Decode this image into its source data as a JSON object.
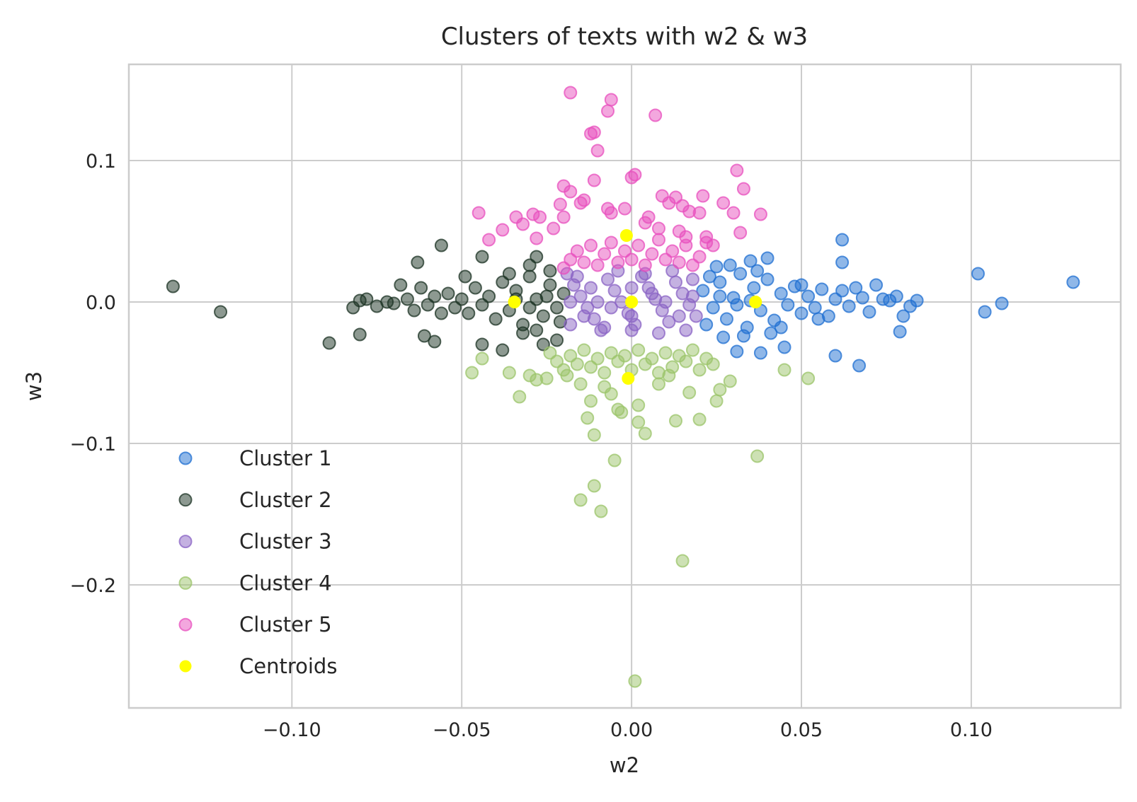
{
  "colors": {
    "cluster1": "#1f6fd1",
    "cluster2": "#1c3324",
    "cluster3": "#8a63c4",
    "cluster4": "#9bc46a",
    "cluster5": "#e84fbd",
    "centroids": "#ffff00",
    "grid": "#cccccc"
  },
  "chart_data": {
    "type": "scatter",
    "title": "Clusters of texts with w2 & w3",
    "xlabel": "w2",
    "ylabel": "w3",
    "xlim": [
      -0.148,
      0.144
    ],
    "ylim": [
      -0.287,
      0.168
    ],
    "xticks": [
      -0.1,
      -0.05,
      0.0,
      0.05,
      0.1
    ],
    "xtick_labels": [
      "−0.10",
      "−0.05",
      "0.00",
      "0.05",
      "0.10"
    ],
    "yticks": [
      0.1,
      0.0,
      -0.1,
      -0.2
    ],
    "ytick_labels": [
      "0.1",
      "0.0",
      "−0.1",
      "−0.2"
    ],
    "grid": true,
    "legend_position": "lower-left",
    "series": [
      {
        "name": "Cluster 1",
        "color_key": "cluster1",
        "points": [
          [
            0.021,
            0.008
          ],
          [
            0.024,
            -0.004
          ],
          [
            0.026,
            0.014
          ],
          [
            0.028,
            -0.012
          ],
          [
            0.03,
            0.003
          ],
          [
            0.032,
            0.02
          ],
          [
            0.034,
            -0.018
          ],
          [
            0.036,
            0.01
          ],
          [
            0.038,
            -0.006
          ],
          [
            0.04,
            0.016
          ],
          [
            0.042,
            -0.013
          ],
          [
            0.044,
            0.006
          ],
          [
            0.046,
            -0.002
          ],
          [
            0.048,
            0.011
          ],
          [
            0.05,
            -0.008
          ],
          [
            0.052,
            0.004
          ],
          [
            0.054,
            -0.004
          ],
          [
            0.056,
            0.009
          ],
          [
            0.058,
            -0.01
          ],
          [
            0.06,
            0.002
          ],
          [
            0.062,
            0.008
          ],
          [
            0.064,
            -0.003
          ],
          [
            0.066,
            0.01
          ],
          [
            0.068,
            0.003
          ],
          [
            0.07,
            -0.007
          ],
          [
            0.072,
            0.012
          ],
          [
            0.074,
            0.002
          ],
          [
            0.076,
            0.001
          ],
          [
            0.078,
            0.004
          ],
          [
            0.08,
            -0.01
          ],
          [
            0.082,
            -0.003
          ],
          [
            0.084,
            0.001
          ],
          [
            0.062,
            0.044
          ],
          [
            0.062,
            0.028
          ],
          [
            0.06,
            -0.038
          ],
          [
            0.067,
            -0.045
          ],
          [
            0.079,
            -0.021
          ],
          [
            0.045,
            -0.032
          ],
          [
            0.038,
            -0.036
          ],
          [
            0.031,
            -0.035
          ],
          [
            0.04,
            0.031
          ],
          [
            0.035,
            0.029
          ],
          [
            0.102,
            0.02
          ],
          [
            0.104,
            -0.007
          ],
          [
            0.109,
            -0.001
          ],
          [
            0.13,
            0.014
          ],
          [
            0.025,
            0.025
          ],
          [
            0.027,
            -0.025
          ],
          [
            0.033,
            -0.024
          ],
          [
            0.029,
            0.026
          ],
          [
            0.05,
            0.012
          ],
          [
            0.055,
            -0.012
          ],
          [
            0.044,
            -0.018
          ],
          [
            0.037,
            0.022
          ],
          [
            0.041,
            -0.022
          ],
          [
            0.023,
            0.018
          ],
          [
            0.022,
            -0.016
          ],
          [
            0.026,
            0.004
          ],
          [
            0.031,
            -0.002
          ],
          [
            0.035,
            0.001
          ]
        ]
      },
      {
        "name": "Cluster 2",
        "color_key": "cluster2",
        "points": [
          [
            -0.02,
            0.006
          ],
          [
            -0.022,
            -0.004
          ],
          [
            -0.024,
            0.012
          ],
          [
            -0.026,
            -0.01
          ],
          [
            -0.028,
            0.002
          ],
          [
            -0.03,
            0.018
          ],
          [
            -0.032,
            -0.016
          ],
          [
            -0.034,
            0.008
          ],
          [
            -0.036,
            -0.006
          ],
          [
            -0.038,
            0.014
          ],
          [
            -0.04,
            -0.012
          ],
          [
            -0.042,
            0.004
          ],
          [
            -0.044,
            -0.002
          ],
          [
            -0.046,
            0.01
          ],
          [
            -0.048,
            -0.008
          ],
          [
            -0.05,
            0.002
          ],
          [
            -0.052,
            -0.004
          ],
          [
            -0.054,
            0.006
          ],
          [
            -0.056,
            -0.008
          ],
          [
            -0.058,
            0.004
          ],
          [
            -0.06,
            -0.002
          ],
          [
            -0.062,
            0.01
          ],
          [
            -0.064,
            -0.006
          ],
          [
            -0.066,
            0.002
          ],
          [
            -0.068,
            0.012
          ],
          [
            -0.07,
            -0.001
          ],
          [
            -0.072,
            0.0
          ],
          [
            -0.075,
            -0.003
          ],
          [
            -0.078,
            0.002
          ],
          [
            -0.08,
            0.001
          ],
          [
            -0.082,
            -0.004
          ],
          [
            -0.056,
            0.04
          ],
          [
            -0.063,
            0.028
          ],
          [
            -0.044,
            0.032
          ],
          [
            -0.049,
            0.018
          ],
          [
            -0.028,
            0.032
          ],
          [
            -0.03,
            0.026
          ],
          [
            -0.022,
            -0.027
          ],
          [
            -0.026,
            -0.03
          ],
          [
            -0.038,
            -0.034
          ],
          [
            -0.044,
            -0.03
          ],
          [
            -0.058,
            -0.028
          ],
          [
            -0.061,
            -0.024
          ],
          [
            -0.08,
            -0.023
          ],
          [
            -0.089,
            -0.029
          ],
          [
            -0.121,
            -0.007
          ],
          [
            -0.135,
            0.011
          ],
          [
            -0.032,
            -0.022
          ],
          [
            -0.036,
            0.02
          ],
          [
            -0.028,
            -0.02
          ],
          [
            -0.024,
            0.022
          ],
          [
            -0.021,
            -0.014
          ],
          [
            -0.025,
            0.004
          ],
          [
            -0.03,
            -0.004
          ],
          [
            -0.034,
            0.002
          ]
        ]
      },
      {
        "name": "Cluster 3",
        "color_key": "cluster3",
        "points": [
          [
            -0.019,
            0.02
          ],
          [
            -0.017,
            0.012
          ],
          [
            -0.015,
            0.004
          ],
          [
            -0.013,
            -0.004
          ],
          [
            -0.011,
            -0.012
          ],
          [
            -0.009,
            -0.02
          ],
          [
            -0.007,
            0.016
          ],
          [
            -0.005,
            0.008
          ],
          [
            -0.003,
            0.0
          ],
          [
            -0.001,
            -0.008
          ],
          [
            0.001,
            -0.016
          ],
          [
            0.003,
            0.018
          ],
          [
            0.005,
            0.01
          ],
          [
            0.007,
            0.002
          ],
          [
            0.009,
            -0.006
          ],
          [
            0.011,
            -0.014
          ],
          [
            0.013,
            0.014
          ],
          [
            0.015,
            0.006
          ],
          [
            0.017,
            -0.002
          ],
          [
            0.019,
            -0.01
          ],
          [
            -0.018,
            -0.016
          ],
          [
            -0.016,
            0.018
          ],
          [
            -0.012,
            0.01
          ],
          [
            -0.008,
            -0.018
          ],
          [
            -0.004,
            0.022
          ],
          [
            0.0,
            -0.02
          ],
          [
            0.004,
            0.02
          ],
          [
            0.008,
            -0.022
          ],
          [
            0.012,
            0.022
          ],
          [
            0.016,
            -0.02
          ],
          [
            0.018,
            0.016
          ],
          [
            -0.018,
            0.0
          ],
          [
            0.018,
            0.004
          ],
          [
            0.0,
            0.01
          ],
          [
            0.0,
            -0.01
          ],
          [
            -0.01,
            0.0
          ],
          [
            0.01,
            0.0
          ],
          [
            -0.014,
            -0.01
          ],
          [
            0.014,
            -0.01
          ],
          [
            -0.006,
            -0.004
          ],
          [
            0.006,
            0.006
          ]
        ]
      },
      {
        "name": "Cluster 4",
        "color_key": "cluster4",
        "points": [
          [
            -0.024,
            -0.036
          ],
          [
            -0.022,
            -0.042
          ],
          [
            -0.02,
            -0.048
          ],
          [
            -0.018,
            -0.038
          ],
          [
            -0.016,
            -0.044
          ],
          [
            -0.014,
            -0.034
          ],
          [
            -0.012,
            -0.046
          ],
          [
            -0.01,
            -0.04
          ],
          [
            -0.008,
            -0.05
          ],
          [
            -0.006,
            -0.036
          ],
          [
            -0.004,
            -0.042
          ],
          [
            -0.002,
            -0.038
          ],
          [
            0.0,
            -0.048
          ],
          [
            0.002,
            -0.034
          ],
          [
            0.004,
            -0.044
          ],
          [
            0.006,
            -0.04
          ],
          [
            0.008,
            -0.05
          ],
          [
            0.01,
            -0.036
          ],
          [
            0.012,
            -0.046
          ],
          [
            0.014,
            -0.038
          ],
          [
            0.016,
            -0.042
          ],
          [
            0.018,
            -0.034
          ],
          [
            0.02,
            -0.048
          ],
          [
            0.022,
            -0.04
          ],
          [
            0.024,
            -0.044
          ],
          [
            -0.03,
            -0.052
          ],
          [
            -0.028,
            -0.055
          ],
          [
            -0.033,
            -0.067
          ],
          [
            -0.025,
            -0.054
          ],
          [
            -0.036,
            -0.05
          ],
          [
            -0.047,
            -0.05
          ],
          [
            -0.044,
            -0.04
          ],
          [
            -0.015,
            -0.058
          ],
          [
            -0.012,
            -0.07
          ],
          [
            -0.013,
            -0.082
          ],
          [
            -0.011,
            -0.094
          ],
          [
            -0.006,
            -0.065
          ],
          [
            -0.004,
            -0.076
          ],
          [
            -0.003,
            -0.078
          ],
          [
            0.002,
            -0.073
          ],
          [
            0.002,
            -0.085
          ],
          [
            0.004,
            -0.093
          ],
          [
            0.013,
            -0.084
          ],
          [
            0.017,
            -0.064
          ],
          [
            0.02,
            -0.083
          ],
          [
            0.025,
            -0.07
          ],
          [
            0.026,
            -0.062
          ],
          [
            0.029,
            -0.056
          ],
          [
            0.045,
            -0.048
          ],
          [
            0.052,
            -0.054
          ],
          [
            -0.005,
            -0.112
          ],
          [
            -0.011,
            -0.13
          ],
          [
            -0.015,
            -0.14
          ],
          [
            -0.009,
            -0.148
          ],
          [
            0.037,
            -0.109
          ],
          [
            0.015,
            -0.183
          ],
          [
            0.001,
            -0.268
          ],
          [
            0.008,
            -0.058
          ],
          [
            -0.008,
            -0.06
          ],
          [
            0.011,
            -0.052
          ],
          [
            -0.019,
            -0.052
          ]
        ]
      },
      {
        "name": "Cluster 5",
        "color_key": "cluster5",
        "points": [
          [
            -0.02,
            0.024
          ],
          [
            -0.018,
            0.03
          ],
          [
            -0.016,
            0.036
          ],
          [
            -0.014,
            0.028
          ],
          [
            -0.012,
            0.04
          ],
          [
            -0.01,
            0.026
          ],
          [
            -0.008,
            0.034
          ],
          [
            -0.006,
            0.042
          ],
          [
            -0.004,
            0.028
          ],
          [
            -0.002,
            0.036
          ],
          [
            0.0,
            0.03
          ],
          [
            0.002,
            0.04
          ],
          [
            0.004,
            0.026
          ],
          [
            0.006,
            0.034
          ],
          [
            0.008,
            0.044
          ],
          [
            0.01,
            0.03
          ],
          [
            0.012,
            0.036
          ],
          [
            0.014,
            0.028
          ],
          [
            0.016,
            0.04
          ],
          [
            0.018,
            0.026
          ],
          [
            0.02,
            0.032
          ],
          [
            0.022,
            0.042
          ],
          [
            -0.028,
            0.045
          ],
          [
            -0.032,
            0.055
          ],
          [
            -0.034,
            0.06
          ],
          [
            -0.029,
            0.062
          ],
          [
            -0.027,
            0.06
          ],
          [
            -0.042,
            0.044
          ],
          [
            -0.045,
            0.063
          ],
          [
            -0.038,
            0.051
          ],
          [
            -0.023,
            0.052
          ],
          [
            -0.02,
            0.06
          ],
          [
            -0.021,
            0.069
          ],
          [
            -0.02,
            0.082
          ],
          [
            -0.018,
            0.078
          ],
          [
            -0.015,
            0.07
          ],
          [
            -0.014,
            0.072
          ],
          [
            -0.011,
            0.086
          ],
          [
            -0.01,
            0.107
          ],
          [
            -0.011,
            0.12
          ],
          [
            -0.012,
            0.119
          ],
          [
            -0.007,
            0.135
          ],
          [
            -0.006,
            0.143
          ],
          [
            -0.018,
            0.148
          ],
          [
            0.007,
            0.132
          ],
          [
            0.0,
            0.088
          ],
          [
            0.001,
            0.09
          ],
          [
            -0.007,
            0.066
          ],
          [
            -0.006,
            0.063
          ],
          [
            -0.002,
            0.066
          ],
          [
            0.005,
            0.06
          ],
          [
            0.009,
            0.075
          ],
          [
            0.011,
            0.07
          ],
          [
            0.013,
            0.074
          ],
          [
            0.015,
            0.068
          ],
          [
            0.017,
            0.064
          ],
          [
            0.021,
            0.075
          ],
          [
            0.02,
            0.063
          ],
          [
            0.027,
            0.07
          ],
          [
            0.031,
            0.093
          ],
          [
            0.033,
            0.08
          ],
          [
            0.03,
            0.063
          ],
          [
            0.032,
            0.049
          ],
          [
            0.038,
            0.062
          ],
          [
            0.022,
            0.046
          ],
          [
            0.024,
            0.04
          ],
          [
            0.014,
            0.05
          ],
          [
            0.016,
            0.046
          ],
          [
            0.004,
            0.056
          ],
          [
            0.008,
            0.052
          ]
        ]
      },
      {
        "name": "Centroids",
        "color_key": "centroids",
        "points": [
          [
            0.0365,
            0.0
          ],
          [
            -0.0345,
            0.0
          ],
          [
            0.0,
            0.0
          ],
          [
            -0.001,
            -0.054
          ],
          [
            -0.0015,
            0.047
          ]
        ]
      }
    ]
  }
}
